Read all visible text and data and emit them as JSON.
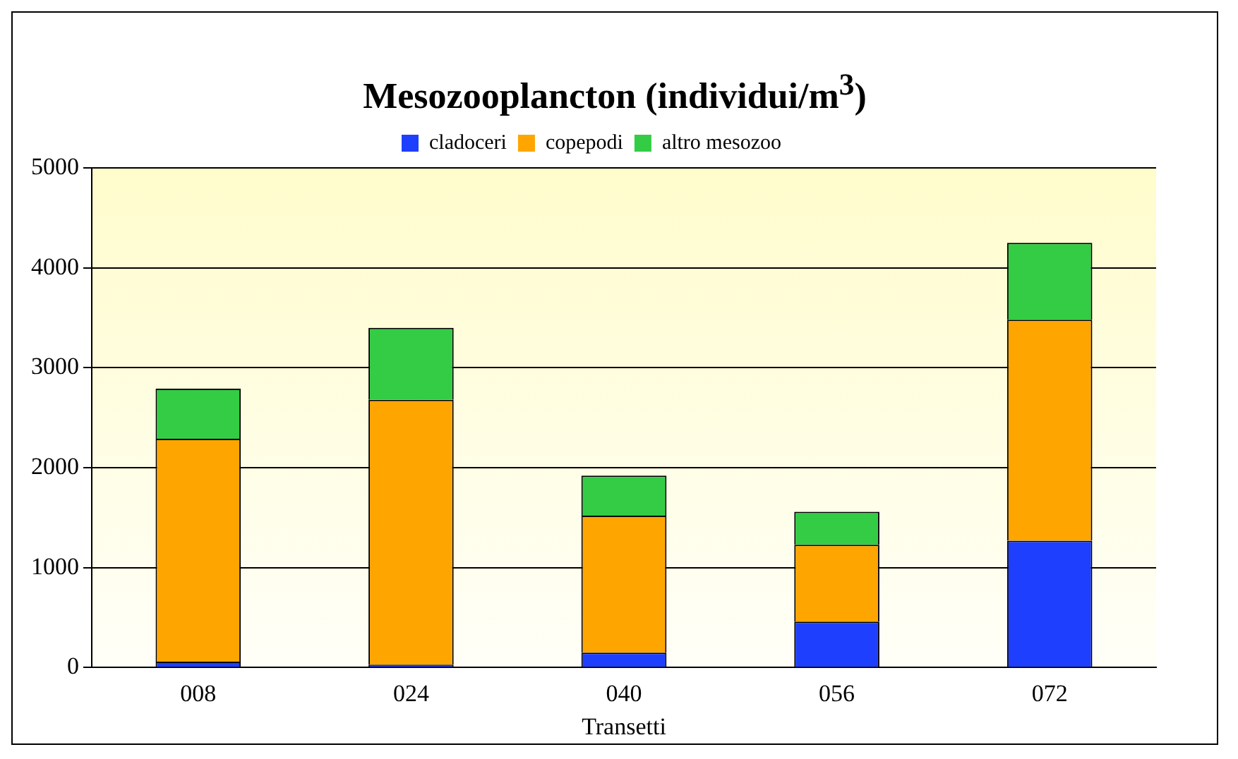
{
  "chart_data": {
    "type": "bar",
    "title": "Mesozooplancton (individui/m$^{3}$)",
    "xlabel": "Transetti",
    "categories": [
      "008",
      "024",
      "040",
      "056",
      "072"
    ],
    "stacked": true,
    "series": [
      {
        "name": "cladoceri",
        "color": "#1f3fff",
        "values": [
          60,
          30,
          150,
          460,
          1270
        ]
      },
      {
        "name": "copepodi",
        "color": "#ffa500",
        "values": [
          2230,
          2650,
          1370,
          770,
          2210
        ]
      },
      {
        "name": "altro mesozoo",
        "color": "#33cc44",
        "values": [
          500,
          720,
          400,
          330,
          770
        ]
      }
    ],
    "ylim": [
      0,
      5000
    ],
    "yticks": [
      0,
      1000,
      2000,
      3000,
      4000,
      5000
    ],
    "grid": "y",
    "legend": "top"
  }
}
